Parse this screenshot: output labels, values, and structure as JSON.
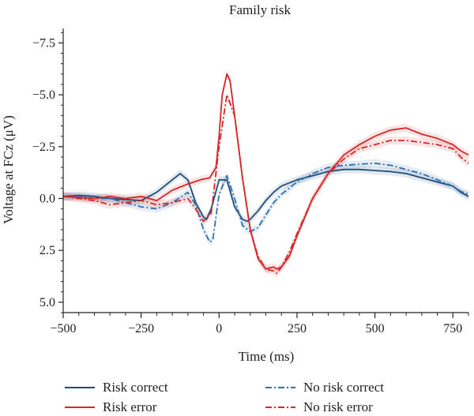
{
  "chart_data": {
    "type": "line",
    "title": "Family risk",
    "xlabel": "Time (ms)",
    "ylabel": "Voltage at FCz (μV)",
    "xlim": [
      -500,
      800
    ],
    "ylim": [
      5.5,
      -8.2
    ],
    "y_axis_inverted": true,
    "x_ticks": [
      -500,
      -250,
      0,
      250,
      500,
      750
    ],
    "x_tick_labels": [
      "−500",
      "−250",
      "0",
      "250",
      "500",
      "750"
    ],
    "y_ticks": [
      -7.5,
      -5.0,
      -2.5,
      0.0,
      2.5,
      5.0
    ],
    "y_tick_labels": [
      "−7.5",
      "−5.0",
      "−2.5",
      "0.0",
      "2.5",
      "5.0"
    ],
    "grid": false,
    "legend_position": "bottom",
    "series": [
      {
        "name": "Risk correct",
        "color": "#1f4e79",
        "dash": "solid",
        "band": true,
        "x": [
          -500,
          -450,
          -400,
          -350,
          -300,
          -250,
          -200,
          -150,
          -125,
          -100,
          -75,
          -50,
          -40,
          -25,
          0,
          25,
          50,
          75,
          90,
          100,
          125,
          150,
          175,
          200,
          250,
          300,
          350,
          400,
          450,
          500,
          550,
          600,
          650,
          700,
          750,
          775,
          800
        ],
        "y": [
          -0.1,
          -0.15,
          -0.1,
          0.0,
          0.05,
          0.1,
          -0.3,
          -0.9,
          -1.2,
          -0.9,
          0.2,
          0.9,
          1.0,
          0.5,
          -0.9,
          -0.9,
          0.4,
          1.0,
          1.1,
          1.0,
          0.6,
          0.1,
          -0.3,
          -0.6,
          -0.9,
          -1.1,
          -1.3,
          -1.4,
          -1.4,
          -1.35,
          -1.3,
          -1.2,
          -1.0,
          -0.8,
          -0.6,
          -0.3,
          -0.1
        ]
      },
      {
        "name": "No risk correct",
        "color": "#2e6fb0",
        "dash": "dash-dot",
        "band": true,
        "x": [
          -500,
          -450,
          -400,
          -350,
          -300,
          -250,
          -200,
          -150,
          -100,
          -75,
          -50,
          -30,
          -20,
          0,
          25,
          50,
          75,
          100,
          125,
          150,
          175,
          200,
          250,
          300,
          350,
          400,
          450,
          500,
          550,
          600,
          650,
          700,
          750,
          775,
          800
        ],
        "y": [
          -0.1,
          -0.1,
          0.0,
          0.0,
          0.2,
          0.4,
          0.5,
          0.2,
          -0.3,
          0.3,
          1.5,
          2.1,
          2.0,
          -0.2,
          -1.1,
          0.0,
          1.3,
          1.6,
          1.4,
          0.8,
          0.2,
          -0.2,
          -0.8,
          -1.2,
          -1.5,
          -1.6,
          -1.65,
          -1.7,
          -1.6,
          -1.4,
          -1.2,
          -0.9,
          -0.6,
          -0.35,
          -0.2
        ]
      },
      {
        "name": "Risk error",
        "color": "#d62728",
        "dash": "solid",
        "band": true,
        "x": [
          -500,
          -450,
          -400,
          -350,
          -300,
          -250,
          -200,
          -150,
          -100,
          -60,
          -30,
          -10,
          0,
          10,
          25,
          35,
          50,
          75,
          100,
          125,
          150,
          175,
          185,
          200,
          225,
          250,
          300,
          350,
          400,
          450,
          500,
          550,
          600,
          650,
          700,
          750,
          775,
          800
        ],
        "y": [
          -0.1,
          -0.05,
          0.0,
          -0.1,
          0.0,
          -0.1,
          0.1,
          -0.4,
          -0.7,
          -0.9,
          -1.0,
          -1.5,
          -3.0,
          -5.0,
          -6.0,
          -5.7,
          -4.0,
          -1.0,
          1.5,
          2.9,
          3.4,
          3.3,
          3.4,
          3.3,
          2.8,
          1.8,
          0.0,
          -1.2,
          -2.1,
          -2.6,
          -3.0,
          -3.3,
          -3.4,
          -3.1,
          -2.9,
          -2.6,
          -2.3,
          -2.1
        ]
      },
      {
        "name": "No risk error",
        "color": "#d62728",
        "dash": "dash-dot",
        "band": true,
        "x": [
          -500,
          -450,
          -400,
          -350,
          -300,
          -250,
          -200,
          -150,
          -100,
          -75,
          -50,
          -25,
          0,
          25,
          50,
          75,
          100,
          125,
          150,
          175,
          185,
          200,
          225,
          250,
          300,
          350,
          400,
          450,
          500,
          550,
          600,
          650,
          700,
          750,
          775,
          800
        ],
        "y": [
          -0.1,
          0.0,
          0.1,
          0.3,
          0.2,
          0.1,
          0.3,
          0.2,
          0.0,
          0.5,
          1.1,
          0.7,
          -2.5,
          -5.0,
          -4.0,
          -1.0,
          1.5,
          2.8,
          3.4,
          3.5,
          3.6,
          3.3,
          2.6,
          1.7,
          0.0,
          -1.2,
          -1.9,
          -2.4,
          -2.6,
          -2.8,
          -2.8,
          -2.7,
          -2.6,
          -2.4,
          -2.0,
          -1.7
        ]
      }
    ]
  }
}
